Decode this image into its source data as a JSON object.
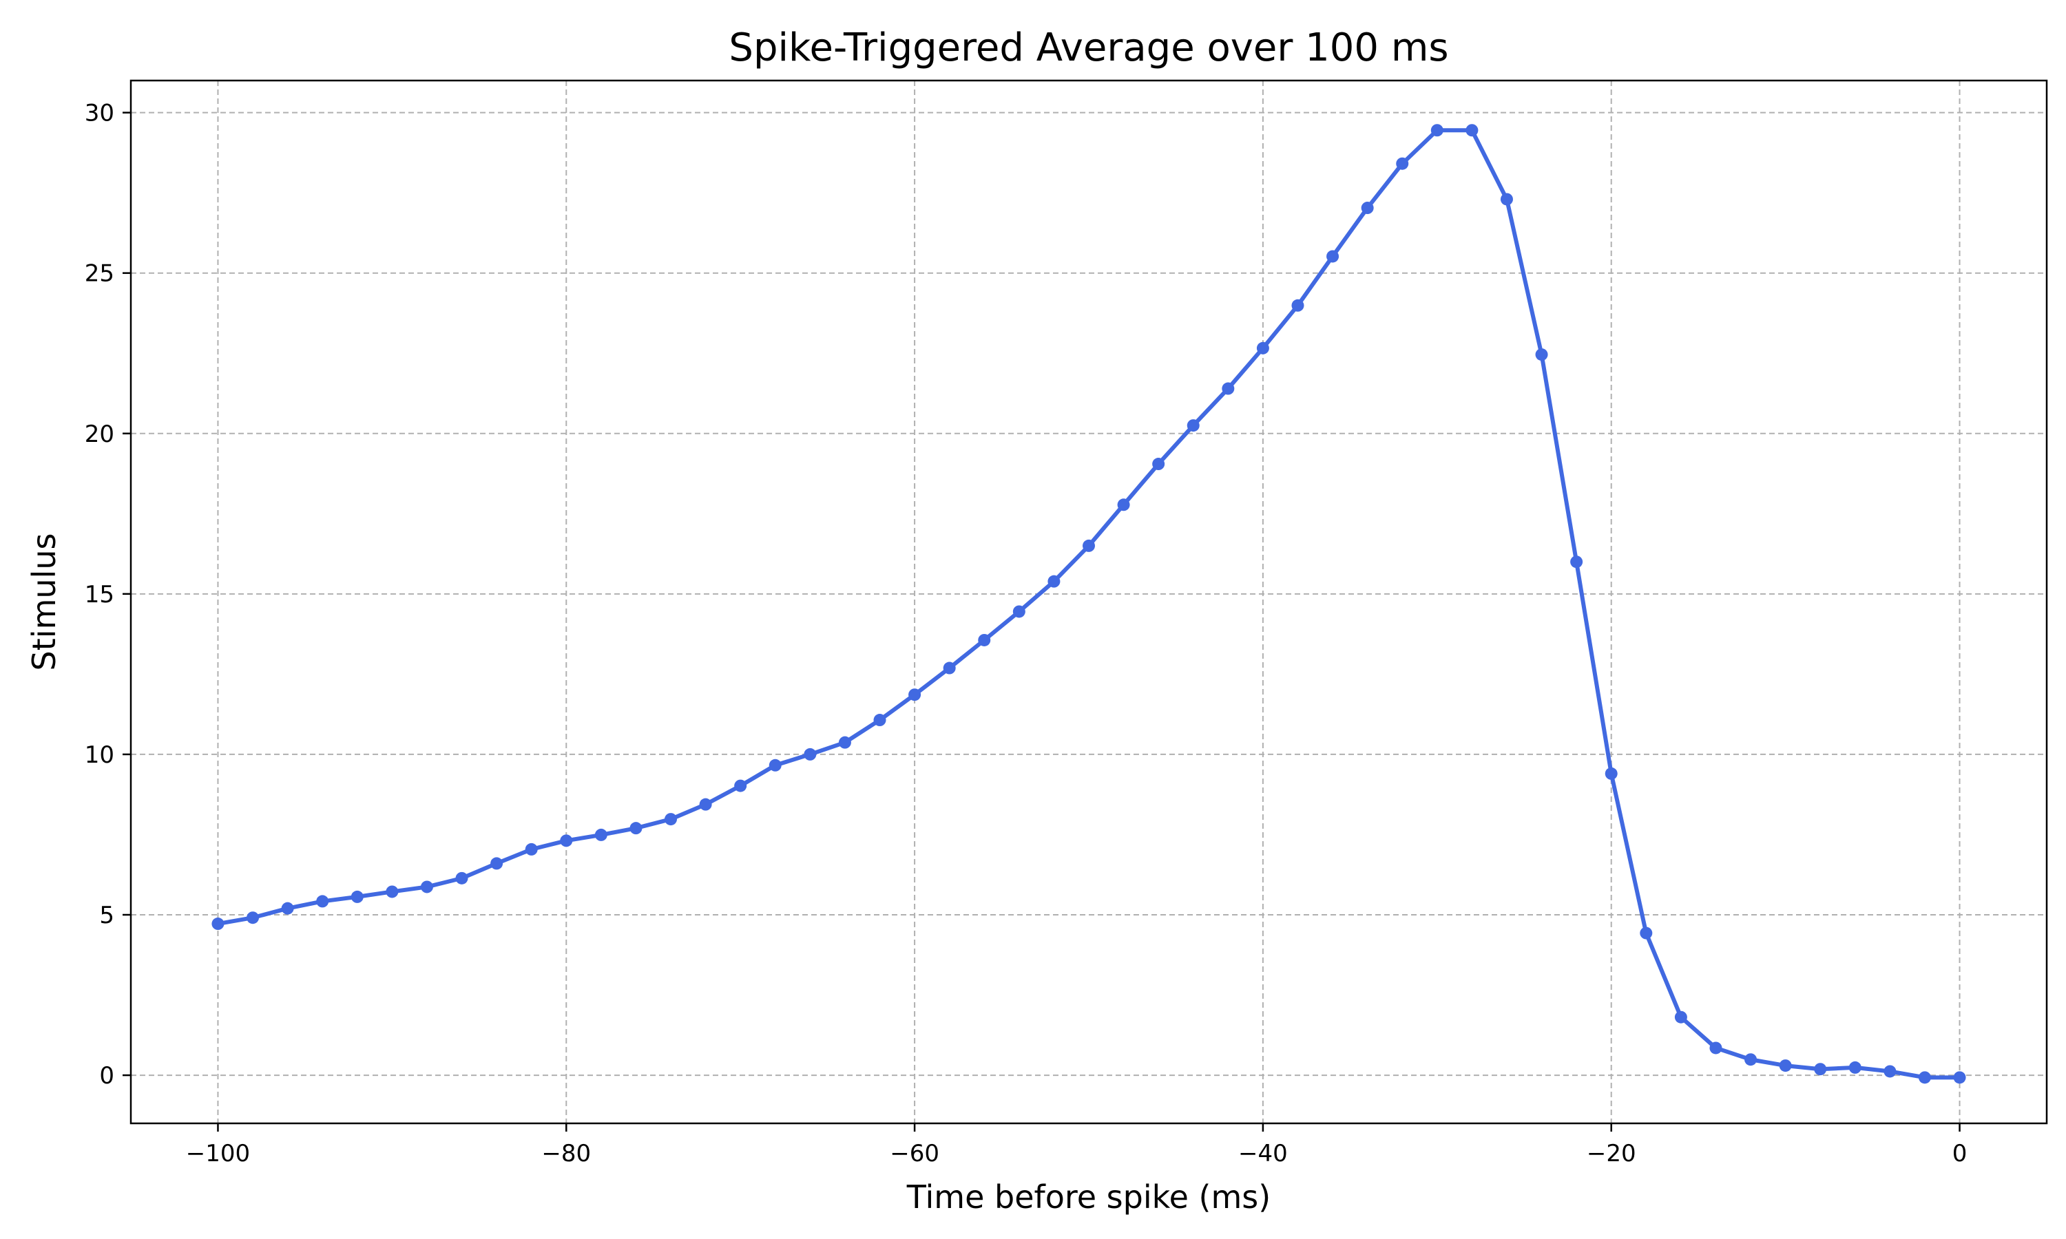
{
  "chart_data": {
    "type": "line",
    "title": "Spike-Triggered Average over 100 ms",
    "xlabel": "Time before spike (ms)",
    "ylabel": "Stimulus",
    "xlim": [
      -105,
      5
    ],
    "ylim": [
      -1.5,
      31
    ],
    "x_ticks": [
      -100,
      -80,
      -60,
      -40,
      -20,
      0
    ],
    "x_tick_labels": [
      "−100",
      "−80",
      "−60",
      "−40",
      "−20",
      "0"
    ],
    "y_ticks": [
      0,
      5,
      10,
      15,
      20,
      25,
      30
    ],
    "y_tick_labels": [
      "0",
      "5",
      "10",
      "15",
      "20",
      "25",
      "30"
    ],
    "grid": true,
    "line_color": "#4169e1",
    "marker": "circle",
    "series": [
      {
        "x": [
          -100,
          -98,
          -96,
          -94,
          -92,
          -90,
          -88,
          -86,
          -84,
          -82,
          -80,
          -78,
          -76,
          -74,
          -72,
          -70,
          -68,
          -66,
          -64,
          -62,
          -60,
          -58,
          -56,
          -54,
          -52,
          -50,
          -48,
          -46,
          -44,
          -42,
          -40,
          -38,
          -36,
          -34,
          -32,
          -30,
          -28,
          -26,
          -24,
          -22,
          -20,
          -18,
          -16,
          -14,
          -12,
          -10,
          -8,
          -6,
          -4,
          -2,
          0
        ],
        "values": [
          4.72,
          4.91,
          5.2,
          5.42,
          5.56,
          5.72,
          5.87,
          6.14,
          6.6,
          7.04,
          7.31,
          7.49,
          7.7,
          7.98,
          8.44,
          9.02,
          9.66,
          10.0,
          10.37,
          11.07,
          11.86,
          12.69,
          13.56,
          14.45,
          15.39,
          16.5,
          17.78,
          19.05,
          20.25,
          21.4,
          22.66,
          23.99,
          25.52,
          27.03,
          28.41,
          29.45,
          29.45,
          27.3,
          22.46,
          16.0,
          9.4,
          4.43,
          1.81,
          0.85,
          0.49,
          0.3,
          0.19,
          0.24,
          0.12,
          -0.07,
          -0.07
        ]
      }
    ]
  }
}
